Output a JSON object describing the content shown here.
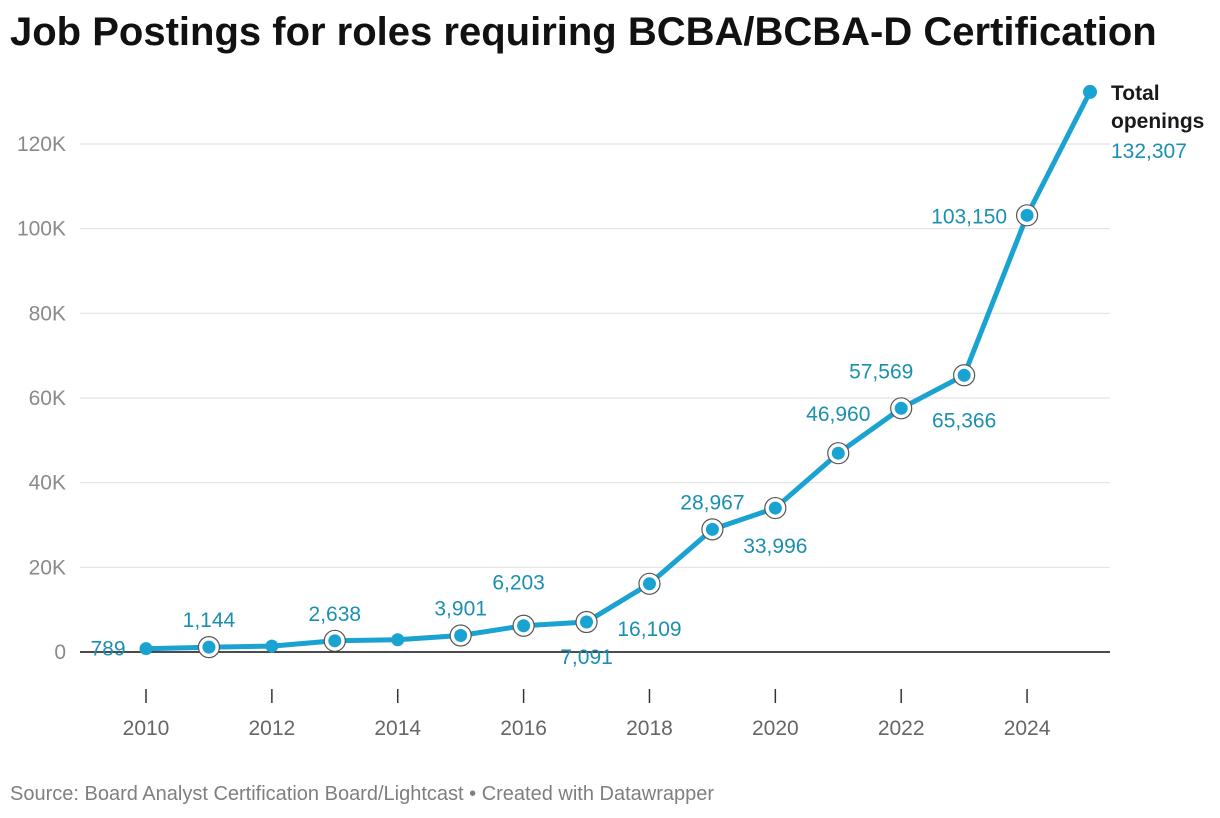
{
  "title": "Job Postings for roles requiring BCBA/BCBA-D Certification",
  "source": "Source: Board Analyst Certification Board/Lightcast • Created with Datawrapper",
  "colors": {
    "line": "#1aa3d1",
    "label": "#1b8fb0",
    "grid": "#e2e2e2",
    "axis": "#111111"
  },
  "chart_data": {
    "type": "line",
    "title": "Job Postings for roles requiring BCBA/BCBA-D Certification",
    "x": [
      2010,
      2011,
      2012,
      2013,
      2014,
      2015,
      2016,
      2017,
      2018,
      2019,
      2020,
      2021,
      2022,
      2023,
      2024,
      2025
    ],
    "series": [
      {
        "name": "Total openings",
        "values": [
          789,
          1144,
          1400,
          2638,
          2900,
          3901,
          6203,
          7091,
          16109,
          28967,
          33996,
          46960,
          57569,
          65366,
          103150,
          132307
        ]
      }
    ],
    "data_labels": [
      {
        "x": 2010,
        "text": "789"
      },
      {
        "x": 2011,
        "text": "1,144"
      },
      {
        "x": 2013,
        "text": "2,638"
      },
      {
        "x": 2015,
        "text": "3,901"
      },
      {
        "x": 2016,
        "text": "6,203"
      },
      {
        "x": 2017,
        "text": "7,091"
      },
      {
        "x": 2018,
        "text": "16,109"
      },
      {
        "x": 2019,
        "text": "28,967"
      },
      {
        "x": 2020,
        "text": "33,996"
      },
      {
        "x": 2021,
        "text": "46,960"
      },
      {
        "x": 2022,
        "text": "57,569"
      },
      {
        "x": 2023,
        "text": "65,366"
      },
      {
        "x": 2024,
        "text": "103,150"
      }
    ],
    "series_end_label": {
      "name_lines": [
        "Total",
        "openings"
      ],
      "value": "132,307"
    },
    "y_ticks": [
      0,
      20000,
      40000,
      60000,
      80000,
      100000,
      120000
    ],
    "y_tick_labels": [
      "0",
      "20K",
      "40K",
      "60K",
      "80K",
      "100K",
      "120K"
    ],
    "x_ticks": [
      2010,
      2012,
      2014,
      2016,
      2018,
      2020,
      2022,
      2024
    ],
    "x_tick_labels": [
      "2010",
      "2012",
      "2014",
      "2016",
      "2018",
      "2020",
      "2022",
      "2024"
    ],
    "xlim": [
      2010,
      2025
    ],
    "ylim": [
      0,
      120000
    ],
    "grid": true,
    "xlabel": "",
    "ylabel": ""
  }
}
